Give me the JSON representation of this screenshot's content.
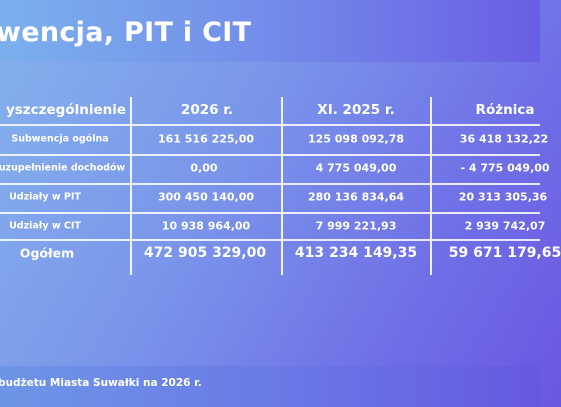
{
  "title": "wencja, PIT i CIT",
  "footer": "budżetu Miasta Suwałki na 2026 r.",
  "table": {
    "headers": [
      "yszczególnienie",
      "2026 r.",
      "XI. 2025 r.",
      "Różnica"
    ],
    "rows": [
      [
        "Subwencja ogólna",
        "161 516 225,00",
        "125 098 092,78",
        "36 418 132,22"
      ],
      [
        "uzupełnienie dochodów",
        "0,00",
        "4 775 049,00",
        "- 4 775 049,00"
      ],
      [
        "Udziały w PIT",
        "300 450 140,00",
        "280 136 834,64",
        "20 313 305,36"
      ],
      [
        "Udziały w CIT",
        "10 938 964,00",
        "7 999 221,93",
        "2 939 742,07"
      ]
    ],
    "total": [
      "Ogółem",
      "472 905 329,00",
      "413 234 149,35",
      "59 671 179,65"
    ]
  },
  "colors": {
    "text": "#ffffff",
    "background_start": "#86b3ec",
    "background_end": "#6b57e2"
  }
}
